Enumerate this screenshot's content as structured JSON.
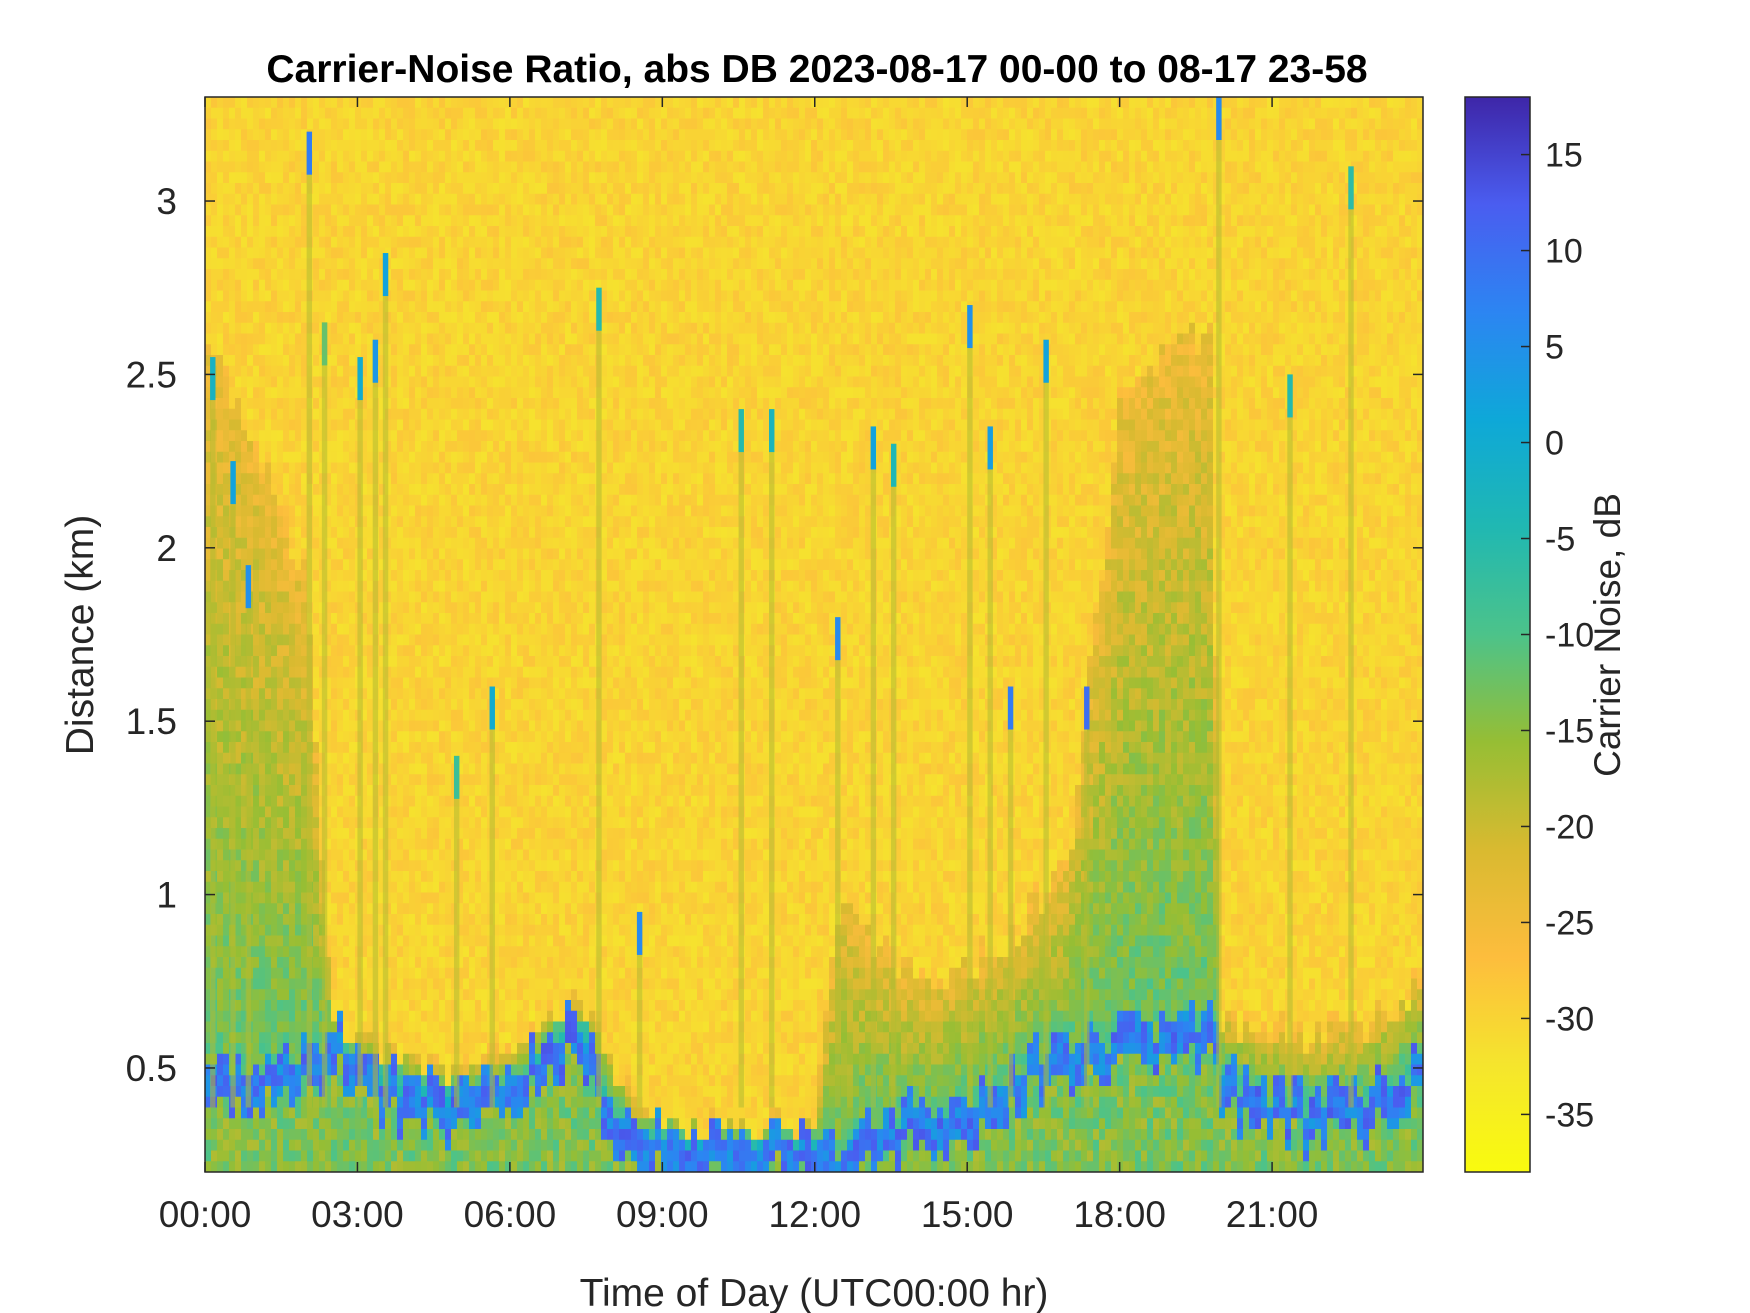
{
  "chart_data": {
    "type": "heatmap",
    "title": "Carrier-Noise Ratio, abs DB 2023-08-17 00-00 to 08-17 23-58",
    "xlabel": "Time of Day (UTC00:00 hr)",
    "ylabel": "Distance (km)",
    "colorbar_label": "Carrier Noise, dB",
    "x_unit": "hour of day (UTC)",
    "xlim": [
      0,
      23.97
    ],
    "ylim": [
      0.2,
      3.3
    ],
    "clim": [
      -38,
      18
    ],
    "colormap": "parula",
    "x_ticks": [
      {
        "value": 0,
        "label": "00:00"
      },
      {
        "value": 3,
        "label": "03:00"
      },
      {
        "value": 6,
        "label": "06:00"
      },
      {
        "value": 9,
        "label": "09:00"
      },
      {
        "value": 12,
        "label": "12:00"
      },
      {
        "value": 15,
        "label": "15:00"
      },
      {
        "value": 18,
        "label": "18:00"
      },
      {
        "value": 21,
        "label": "21:00"
      }
    ],
    "y_ticks": [
      {
        "value": 0.5,
        "label": "0.5"
      },
      {
        "value": 1,
        "label": "1"
      },
      {
        "value": 1.5,
        "label": "1.5"
      },
      {
        "value": 2,
        "label": "2"
      },
      {
        "value": 2.5,
        "label": "2.5"
      },
      {
        "value": 3,
        "label": "3"
      }
    ],
    "colorbar_ticks": [
      {
        "value": 15,
        "label": "15"
      },
      {
        "value": 10,
        "label": "10"
      },
      {
        "value": 5,
        "label": "5"
      },
      {
        "value": 0,
        "label": "0"
      },
      {
        "value": -5,
        "label": "-5"
      },
      {
        "value": -10,
        "label": "-10"
      },
      {
        "value": -15,
        "label": "-15"
      },
      {
        "value": -20,
        "label": "-20"
      },
      {
        "value": -25,
        "label": "-25"
      },
      {
        "value": -30,
        "label": "-30"
      },
      {
        "value": -35,
        "label": "-35"
      }
    ],
    "background_value": -30,
    "boundary_layer": {
      "description": "strong-return layer top (km) and mixed-layer depth (km) vs hour",
      "hours": [
        0,
        1,
        2,
        2.5,
        3,
        4,
        5,
        6,
        6.5,
        7,
        7.5,
        8,
        8.5,
        9,
        10,
        11,
        12,
        12.5,
        13,
        14,
        15,
        16,
        17,
        18,
        19,
        19.8,
        20,
        21,
        22,
        23,
        23.97
      ],
      "strong_top_km": [
        0.5,
        0.5,
        0.55,
        0.62,
        0.55,
        0.47,
        0.45,
        0.47,
        0.55,
        0.63,
        0.63,
        0.42,
        0.33,
        0.33,
        0.31,
        0.31,
        0.31,
        0.25,
        0.35,
        0.38,
        0.42,
        0.52,
        0.58,
        0.62,
        0.65,
        0.65,
        0.52,
        0.43,
        0.42,
        0.45,
        0.55
      ],
      "mixed_top_km": [
        2.6,
        2.3,
        1.9,
        0.65,
        0.6,
        0.55,
        0.5,
        0.55,
        0.62,
        0.7,
        0.7,
        0.55,
        0.38,
        0.36,
        0.34,
        0.34,
        0.36,
        1.0,
        0.9,
        0.75,
        0.8,
        0.9,
        1.1,
        2.4,
        2.6,
        2.6,
        0.65,
        0.6,
        0.6,
        0.65,
        0.75
      ]
    },
    "vertical_streaks": [
      {
        "hour": 0.1,
        "top_km": 2.55,
        "value": -2
      },
      {
        "hour": 0.5,
        "top_km": 2.25,
        "value": 2
      },
      {
        "hour": 0.8,
        "top_km": 1.95,
        "value": 5
      },
      {
        "hour": 2.0,
        "top_km": 3.2,
        "value": 8
      },
      {
        "hour": 2.3,
        "top_km": 2.65,
        "value": -12
      },
      {
        "hour": 3.0,
        "top_km": 2.55,
        "value": 0
      },
      {
        "hour": 3.3,
        "top_km": 2.6,
        "value": 4
      },
      {
        "hour": 3.5,
        "top_km": 2.85,
        "value": 2
      },
      {
        "hour": 4.9,
        "top_km": 1.4,
        "value": -8
      },
      {
        "hour": 5.6,
        "top_km": 1.6,
        "value": 0
      },
      {
        "hour": 7.7,
        "top_km": 2.75,
        "value": -5
      },
      {
        "hour": 8.5,
        "top_km": 0.95,
        "value": 6
      },
      {
        "hour": 10.5,
        "top_km": 2.4,
        "value": -5
      },
      {
        "hour": 11.1,
        "top_km": 2.4,
        "value": -3
      },
      {
        "hour": 12.4,
        "top_km": 1.8,
        "value": 6
      },
      {
        "hour": 13.1,
        "top_km": 2.35,
        "value": 2
      },
      {
        "hour": 13.5,
        "top_km": 2.3,
        "value": -4
      },
      {
        "hour": 15.0,
        "top_km": 2.7,
        "value": 5
      },
      {
        "hour": 15.4,
        "top_km": 2.35,
        "value": 3
      },
      {
        "hour": 15.8,
        "top_km": 1.6,
        "value": 8
      },
      {
        "hour": 16.5,
        "top_km": 2.6,
        "value": 2
      },
      {
        "hour": 17.3,
        "top_km": 1.6,
        "value": 10
      },
      {
        "hour": 19.9,
        "top_km": 3.3,
        "value": 6
      },
      {
        "hour": 21.3,
        "top_km": 2.5,
        "value": -5
      },
      {
        "hour": 22.5,
        "top_km": 3.1,
        "value": -6
      }
    ]
  }
}
